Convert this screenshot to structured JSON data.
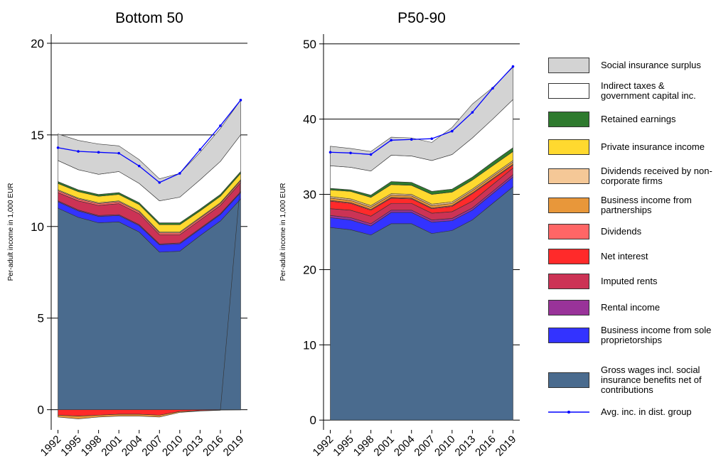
{
  "chart_data": [
    {
      "type": "area",
      "title": "Bottom 50",
      "ylabel": "Per-adult income in 1,000 EUR",
      "x": [
        1992,
        1995,
        1998,
        2001,
        2004,
        2007,
        2010,
        2013,
        2016,
        2019
      ],
      "xlim": [
        1991,
        2020
      ],
      "ylim": [
        -1.1,
        20.5
      ],
      "yticks": [
        0,
        5,
        10,
        15,
        20
      ],
      "grid": true,
      "series": [
        {
          "name": "Gross wages incl. social insurance benefits net of contributions",
          "color": "#4a6b8e",
          "values": [
            11.0,
            10.5,
            10.2,
            10.25,
            9.7,
            8.6,
            8.65,
            9.5,
            10.3,
            11.5
          ]
        },
        {
          "name": "Business income from sole proprietorships",
          "color": "#3333ff",
          "values": [
            0.35,
            0.35,
            0.35,
            0.35,
            0.35,
            0.4,
            0.4,
            0.35,
            0.35,
            0.35
          ]
        },
        {
          "name": "Rental income",
          "color": "#993399",
          "values": [
            0.05,
            0.05,
            0.05,
            0.05,
            0.05,
            0.05,
            0.05,
            0.05,
            0.05,
            0.05
          ]
        },
        {
          "name": "Imputed rents",
          "color": "#cc3355",
          "values": [
            0.45,
            0.5,
            0.55,
            0.6,
            0.6,
            0.5,
            0.45,
            0.45,
            0.45,
            0.5
          ]
        },
        {
          "name": "Net interest",
          "color": "#ff2a2a",
          "values": [
            -0.3,
            -0.35,
            -0.3,
            -0.25,
            -0.25,
            -0.3,
            -0.1,
            -0.05,
            -0.02,
            -0.01
          ]
        },
        {
          "name": "Dividends",
          "color": "#ff6666",
          "values": [
            0.1,
            0.1,
            0.1,
            0.1,
            0.1,
            0.1,
            0.1,
            0.1,
            0.1,
            0.1
          ]
        },
        {
          "name": "Business income from partnerships",
          "color": "#e8973a",
          "values": [
            -0.1,
            -0.15,
            -0.1,
            -0.1,
            -0.1,
            -0.1,
            -0.05,
            -0.02,
            -0.01,
            0
          ]
        },
        {
          "name": "Dividends received by non-corporate firms",
          "color": "#f5c897",
          "values": [
            0.05,
            0.05,
            0.05,
            0.05,
            0.05,
            0.05,
            0.05,
            0.05,
            0.05,
            0.05
          ]
        },
        {
          "name": "Private insurance income",
          "color": "#ffd92f",
          "values": [
            0.35,
            0.35,
            0.35,
            0.35,
            0.35,
            0.4,
            0.4,
            0.35,
            0.35,
            0.35
          ]
        },
        {
          "name": "Retained earnings",
          "color": "#2e7a2e",
          "values": [
            0.1,
            0.1,
            0.1,
            0.1,
            0.1,
            0.1,
            0.1,
            0.1,
            0.1,
            0.1
          ]
        },
        {
          "name": "Indirect taxes & government capital inc.",
          "color": "#ffffff",
          "values": [
            1.15,
            1.1,
            1.1,
            1.15,
            1.05,
            1.2,
            1.4,
            1.6,
            1.8,
            2.0
          ]
        },
        {
          "name": "Social insurance surplus",
          "color": "#d3d3d3",
          "values": [
            1.45,
            1.6,
            1.65,
            1.4,
            1.3,
            1.2,
            1.3,
            1.5,
            1.8,
            1.9
          ]
        },
        {
          "name": "Avg. inc. in dist. group",
          "color": "#0000ff",
          "type": "line",
          "values": [
            14.3,
            14.1,
            14.05,
            14.0,
            13.3,
            12.4,
            12.9,
            14.2,
            15.5,
            16.9
          ]
        }
      ]
    },
    {
      "type": "area",
      "title": "P50-90",
      "ylabel": "Per-adult income in 1,000 EUR",
      "x": [
        1992,
        1995,
        1998,
        2001,
        2004,
        2007,
        2010,
        2013,
        2016,
        2019
      ],
      "xlim": [
        1991,
        2020
      ],
      "ylim": [
        -1.3,
        51.3
      ],
      "yticks": [
        0,
        10,
        20,
        30,
        40,
        50
      ],
      "grid": true,
      "series": [
        {
          "name": "Gross wages incl. social insurance benefits net of contributions",
          "color": "#4a6b8e",
          "values": [
            25.6,
            25.3,
            24.6,
            26.1,
            26.1,
            24.8,
            25.2,
            26.6,
            28.8,
            31.0
          ]
        },
        {
          "name": "Business income from sole proprietorships",
          "color": "#3333ff",
          "values": [
            1.3,
            1.3,
            1.2,
            1.5,
            1.5,
            1.5,
            1.3,
            1.3,
            1.3,
            1.3
          ]
        },
        {
          "name": "Rental income",
          "color": "#993399",
          "values": [
            0.3,
            0.3,
            0.3,
            0.3,
            0.3,
            0.3,
            0.3,
            0.3,
            0.3,
            0.3
          ]
        },
        {
          "name": "Imputed rents",
          "color": "#cc3355",
          "values": [
            0.9,
            1.0,
            1.0,
            0.9,
            0.9,
            0.9,
            0.9,
            0.9,
            0.9,
            0.9
          ]
        },
        {
          "name": "Net interest",
          "color": "#ff2a2a",
          "values": [
            1.0,
            0.9,
            0.8,
            0.7,
            0.6,
            0.6,
            0.7,
            1.0,
            0.7,
            0.4
          ]
        },
        {
          "name": "Dividends",
          "color": "#ff6666",
          "values": [
            0.1,
            0.1,
            0.1,
            0.1,
            0.1,
            0.1,
            0.1,
            0.1,
            0.1,
            0.1
          ]
        },
        {
          "name": "Business income from partnerships",
          "color": "#e8973a",
          "values": [
            0.3,
            0.3,
            0.3,
            0.3,
            0.3,
            0.3,
            0.3,
            0.3,
            0.3,
            0.3
          ]
        },
        {
          "name": "Dividends received by non-corporate firms",
          "color": "#f5c897",
          "values": [
            0.2,
            0.2,
            0.2,
            0.2,
            0.2,
            0.2,
            0.2,
            0.2,
            0.2,
            0.2
          ]
        },
        {
          "name": "Private insurance income",
          "color": "#ffd92f",
          "values": [
            0.9,
            1.0,
            1.1,
            1.2,
            1.2,
            1.3,
            1.3,
            1.2,
            1.2,
            1.2
          ]
        },
        {
          "name": "Retained earnings",
          "color": "#2e7a2e",
          "values": [
            0.2,
            0.2,
            0.3,
            0.4,
            0.4,
            0.4,
            0.4,
            0.4,
            0.5,
            0.5
          ]
        },
        {
          "name": "Indirect taxes & government capital inc.",
          "color": "#ffffff",
          "values": [
            3.0,
            3.0,
            3.2,
            3.5,
            3.5,
            4.1,
            4.6,
            5.2,
            5.7,
            6.4
          ]
        },
        {
          "name": "Social insurance surplus",
          "color": "#d3d3d3",
          "values": [
            2.6,
            2.5,
            2.6,
            2.4,
            2.4,
            2.4,
            3.6,
            4.5,
            4.2,
            4.3
          ]
        },
        {
          "name": "Avg. inc. in dist. group",
          "color": "#0000ff",
          "type": "line",
          "values": [
            35.6,
            35.5,
            35.3,
            37.2,
            37.3,
            37.4,
            38.4,
            40.9,
            44.1,
            47.0
          ]
        }
      ]
    }
  ]
}
